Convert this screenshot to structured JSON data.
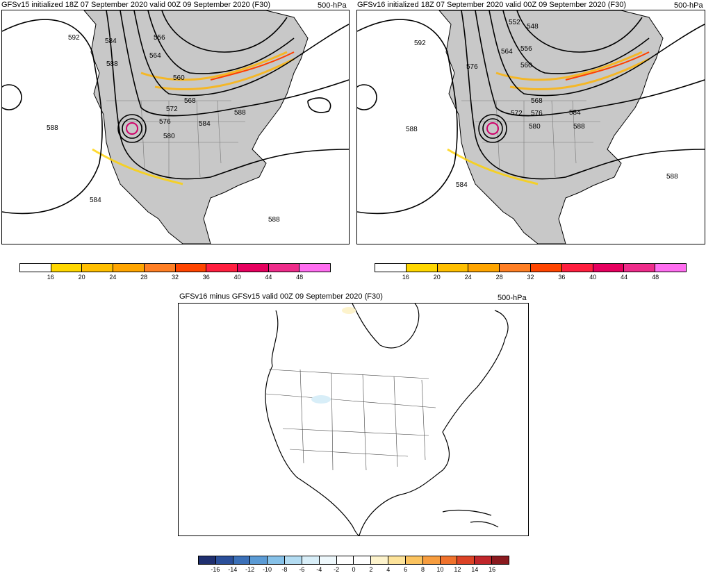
{
  "panels": [
    {
      "title": "GFSv15 initialized 18Z 07 September 2020 valid 00Z 09 September 2020 (F30)",
      "level": "500-hPa",
      "contour_labels": [
        "592",
        "584",
        "588",
        "556",
        "564",
        "560",
        "572",
        "568",
        "576",
        "584",
        "588",
        "580",
        "588",
        "584",
        "588"
      ]
    },
    {
      "title": "GFSv16 initialized 18Z 07 September 2020 valid 00Z 09 September 2020 (F30)",
      "level": "500-hPa",
      "contour_labels": [
        "552",
        "548",
        "592",
        "564",
        "556",
        "576",
        "560",
        "568",
        "572",
        "576",
        "584",
        "580",
        "588",
        "588",
        "584",
        "588"
      ]
    },
    {
      "title": "GFSv16 minus GFSv15 valid 00Z 09 September 2020 (F30)",
      "level": "500-hPa"
    }
  ],
  "wind_colorbar": {
    "colors": [
      "#ffffff",
      "#ffd700",
      "#ffbf00",
      "#ffa500",
      "#ff7f24",
      "#ff4500",
      "#ff1f3f",
      "#e6005e",
      "#ee2c8a",
      "#ff6ef0"
    ],
    "labels": [
      "16",
      "20",
      "24",
      "28",
      "32",
      "36",
      "40",
      "44",
      "48"
    ]
  },
  "diff_colorbar": {
    "colors": [
      "#1f2f6f",
      "#2b4f9a",
      "#3b70b8",
      "#5b9bd5",
      "#86c1e8",
      "#b3dcf2",
      "#d8eef8",
      "#eef8fc",
      "#ffffff",
      "#ffffff",
      "#fdf3cc",
      "#fde39a",
      "#fbc35f",
      "#f79d3f",
      "#f0722c",
      "#dc4326",
      "#c0262b",
      "#8b1a1f"
    ],
    "labels": [
      "-16",
      "-14",
      "-12",
      "-10",
      "-8",
      "-6",
      "-4",
      "-2",
      "0",
      "2",
      "4",
      "6",
      "8",
      "10",
      "12",
      "14",
      "16"
    ]
  }
}
